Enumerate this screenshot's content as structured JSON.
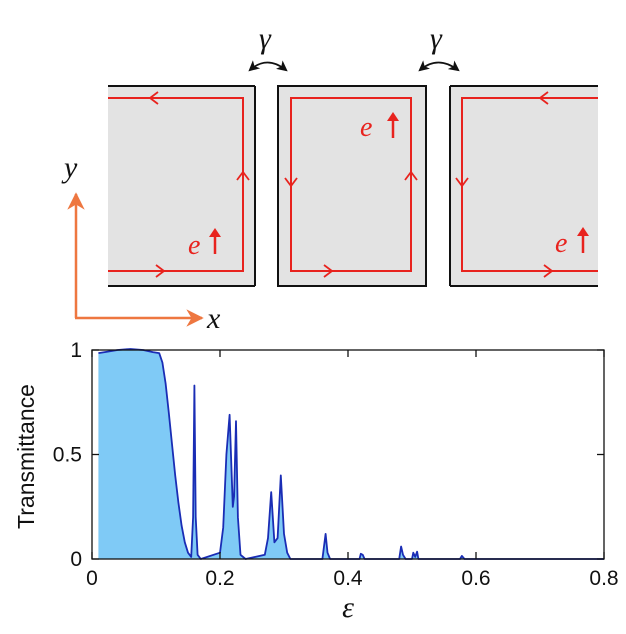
{
  "diagram": {
    "coupling_label": "γ",
    "electron_label": "e",
    "axis_x_label": "x",
    "axis_y_label": "y",
    "colors": {
      "edge_state": "#e8231e",
      "axis_arrow": "#ee7740",
      "block_fill": "#e3e3e3",
      "block_edge": "#111111"
    }
  },
  "chart_data": {
    "type": "area",
    "ylabel": "Transmittance",
    "xlabel": "ε",
    "xlim": [
      0,
      0.8
    ],
    "ylim": [
      0,
      1
    ],
    "xticks": [
      0,
      0.2,
      0.4,
      0.6,
      0.8
    ],
    "xtick_labels": [
      "0",
      "0.2",
      "0.4",
      "0.6",
      "0.8"
    ],
    "yticks": [
      0,
      0.5,
      1
    ],
    "ytick_labels": [
      "0",
      "0.5",
      "1"
    ],
    "grid": false,
    "line_color": "#1a2db5",
    "fill_color": "#7fcaf6",
    "x": [
      0.01,
      0.02,
      0.04,
      0.06,
      0.08,
      0.095,
      0.105,
      0.11,
      0.115,
      0.12,
      0.125,
      0.13,
      0.135,
      0.14,
      0.145,
      0.15,
      0.155,
      0.158,
      0.16,
      0.162,
      0.165,
      0.17,
      0.2,
      0.205,
      0.21,
      0.215,
      0.22,
      0.222,
      0.225,
      0.228,
      0.232,
      0.24,
      0.27,
      0.275,
      0.28,
      0.285,
      0.29,
      0.295,
      0.3,
      0.305,
      0.31,
      0.36,
      0.365,
      0.368,
      0.372,
      0.38,
      0.418,
      0.42,
      0.423,
      0.426,
      0.48,
      0.483,
      0.486,
      0.49,
      0.5,
      0.502,
      0.505,
      0.508,
      0.51,
      0.575,
      0.578,
      0.582,
      0.8
    ],
    "y": [
      0.985,
      0.99,
      1.0,
      1.005,
      1.0,
      0.99,
      0.985,
      0.94,
      0.84,
      0.7,
      0.55,
      0.4,
      0.27,
      0.16,
      0.08,
      0.03,
      0.01,
      0.2,
      0.83,
      0.2,
      0.02,
      0.0,
      0.03,
      0.15,
      0.5,
      0.69,
      0.25,
      0.3,
      0.66,
      0.2,
      0.02,
      0.0,
      0.02,
      0.1,
      0.32,
      0.08,
      0.1,
      0.4,
      0.12,
      0.03,
      0.0,
      0.0,
      0.12,
      0.03,
      0.0,
      0.0,
      0.0,
      0.025,
      0.02,
      0.0,
      0.0,
      0.06,
      0.02,
      0.0,
      0.0,
      0.03,
      0.01,
      0.035,
      0.0,
      0.0,
      0.015,
      0.0,
      0.0
    ]
  }
}
